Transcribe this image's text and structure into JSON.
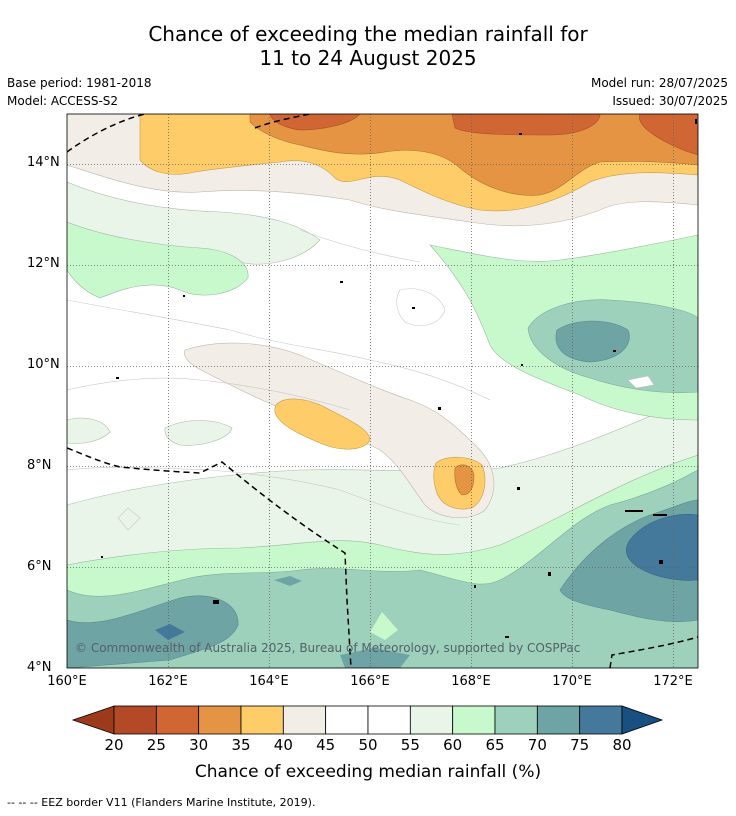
{
  "title_line1": "Chance of exceeding the median rainfall for",
  "title_line2": "11 to 24 August 2025",
  "base_period": "Base period: 1981-2018",
  "model": "Model: ACCESS-S2",
  "model_run": "Model run: 28/07/2025",
  "issued": "Issued: 30/07/2025",
  "lat_ticks": [
    "14°N",
    "12°N",
    "10°N",
    "8°N",
    "6°N",
    "4°N"
  ],
  "lon_ticks": [
    "160°E",
    "162°E",
    "164°E",
    "166°E",
    "168°E",
    "170°E",
    "172°E"
  ],
  "copyright": "© Commonwealth of Australia 2025, Bureau of Meteorology, supported by COSPPac",
  "colorbar": {
    "label": "Chance of exceeding median rainfall (%)",
    "ticks": [
      "20",
      "25",
      "30",
      "35",
      "40",
      "45",
      "50",
      "55",
      "60",
      "65",
      "70",
      "75",
      "80"
    ],
    "colors": [
      "#9e3a1c",
      "#b34a25",
      "#cf6634",
      "#e49443",
      "#fecd6a",
      "#f2ede6",
      "#ffffff",
      "#ffffff",
      "#eaf5e9",
      "#c8f9cc",
      "#9dd1bb",
      "#6fa4a4",
      "#44799c",
      "#1a4f82"
    ]
  },
  "legend_text": "--  --  -- EEZ border V11 (Flanders Marine Institute, 2019)."
}
